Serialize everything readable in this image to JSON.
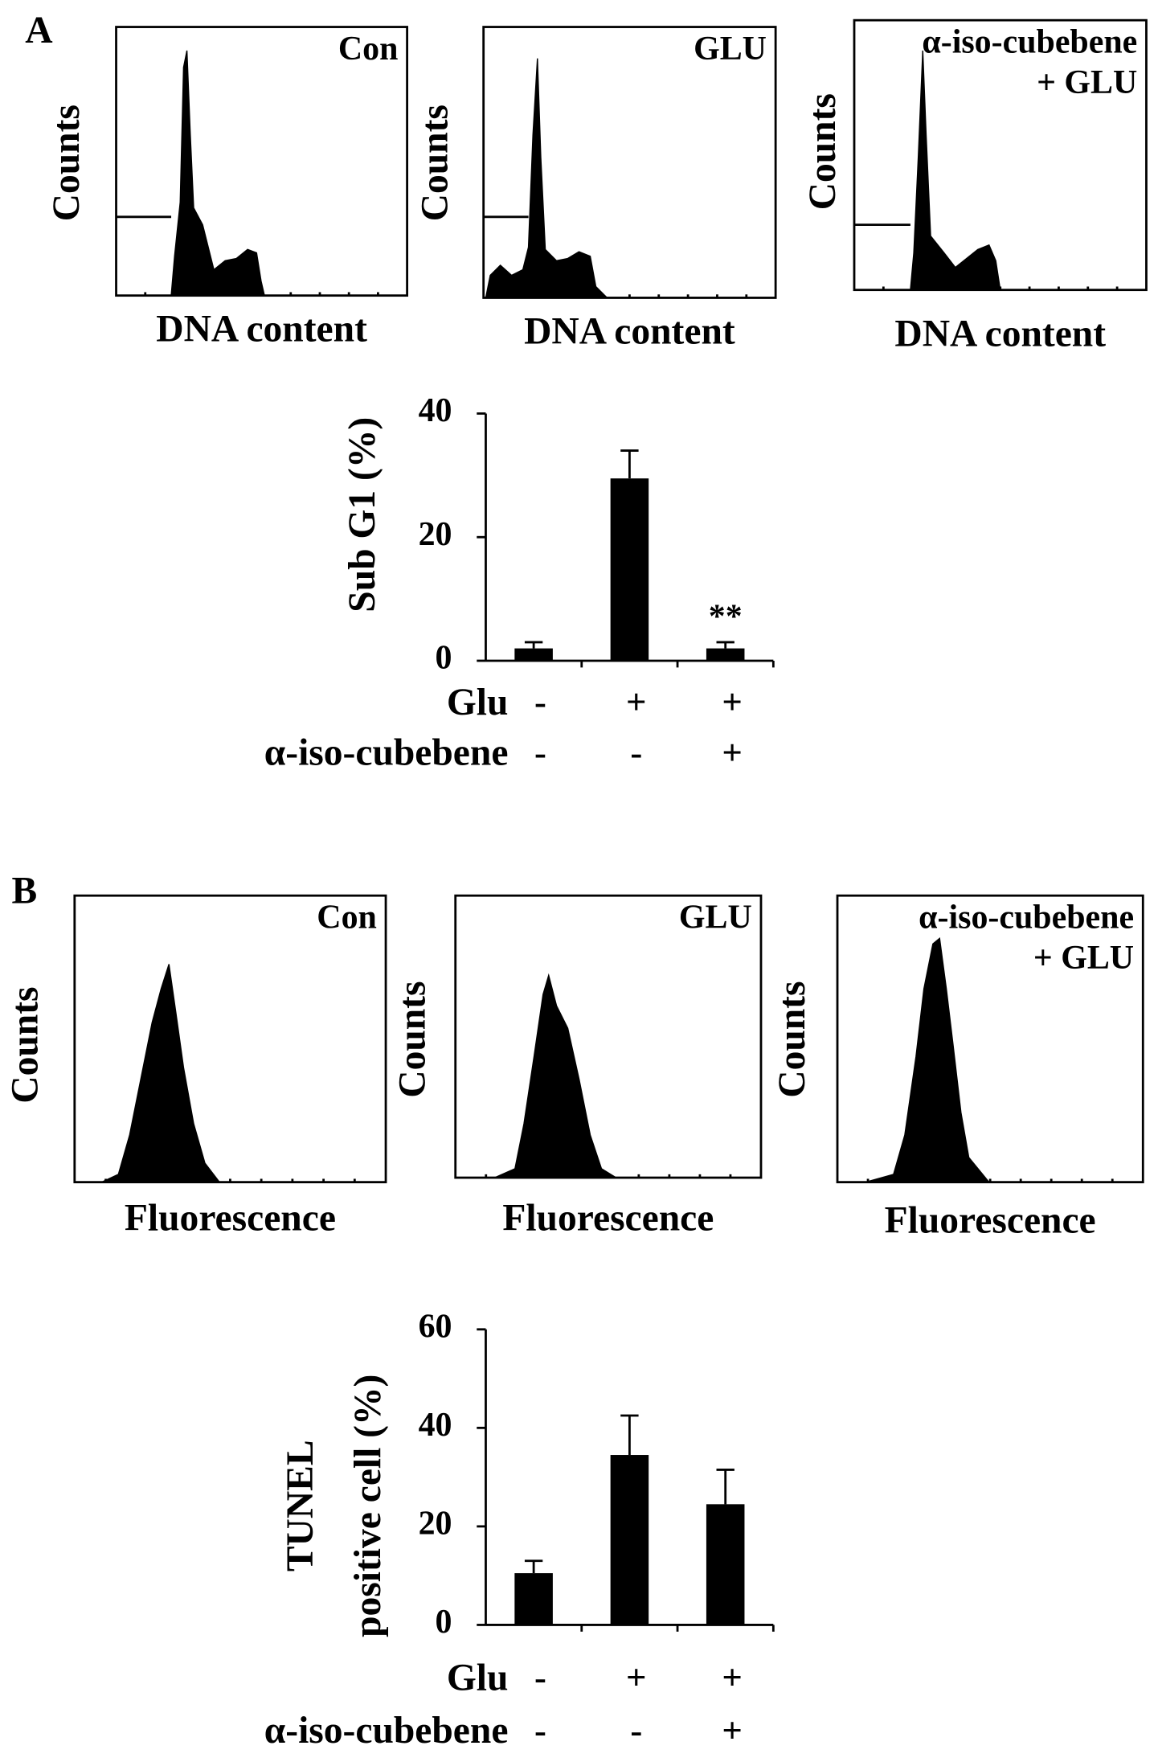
{
  "panel_labels": [
    "A",
    "B"
  ],
  "histograms": [
    {
      "title": [
        "Con"
      ],
      "x_label": "DNA content",
      "y_label": "Counts"
    },
    {
      "title": [
        "GLU"
      ],
      "x_label": "DNA content",
      "y_label": "Counts"
    },
    {
      "title": [
        "α-iso-cubebene",
        "+ GLU"
      ],
      "x_label": "DNA content",
      "y_label": "Counts"
    },
    {
      "title": [
        "Con"
      ],
      "x_label": "Fluorescence",
      "y_label": "Counts"
    },
    {
      "title": [
        "GLU"
      ],
      "x_label": "Fluorescence",
      "y_label": "Counts"
    },
    {
      "title": [
        "α-iso-cubebene",
        "+ GLU"
      ],
      "x_label": "Fluorescence",
      "y_label": "Counts"
    }
  ],
  "chart_data": [
    {
      "type": "bar",
      "y_label": [
        "Sub G1 (%)"
      ],
      "values": [
        2,
        29.5,
        2
      ],
      "errors": [
        1,
        4.5,
        1
      ],
      "annotations": [
        null,
        null,
        "**"
      ],
      "color": "#000000",
      "ylim": [
        0,
        40
      ],
      "yticks": [
        0,
        20,
        40
      ],
      "rows": [
        {
          "name": "Glu",
          "values": [
            "-",
            "+",
            "+"
          ]
        },
        {
          "name": "α-iso-cubebene",
          "values": [
            "-",
            "-",
            "+"
          ]
        }
      ]
    },
    {
      "type": "bar",
      "y_label": [
        "TUNEL",
        "positive cell  (%)"
      ],
      "values": [
        10.5,
        34.5,
        24.5
      ],
      "errors": [
        2.5,
        8,
        7
      ],
      "annotations": [
        null,
        null,
        null
      ],
      "color": "#000000",
      "ylim": [
        0,
        60
      ],
      "yticks": [
        0,
        20,
        40,
        60
      ],
      "rows": [
        {
          "name": "Glu",
          "values": [
            "-",
            "+",
            "+"
          ]
        },
        {
          "name": "α-iso-cubebene",
          "values": [
            "-",
            "-",
            "+"
          ]
        }
      ]
    }
  ]
}
